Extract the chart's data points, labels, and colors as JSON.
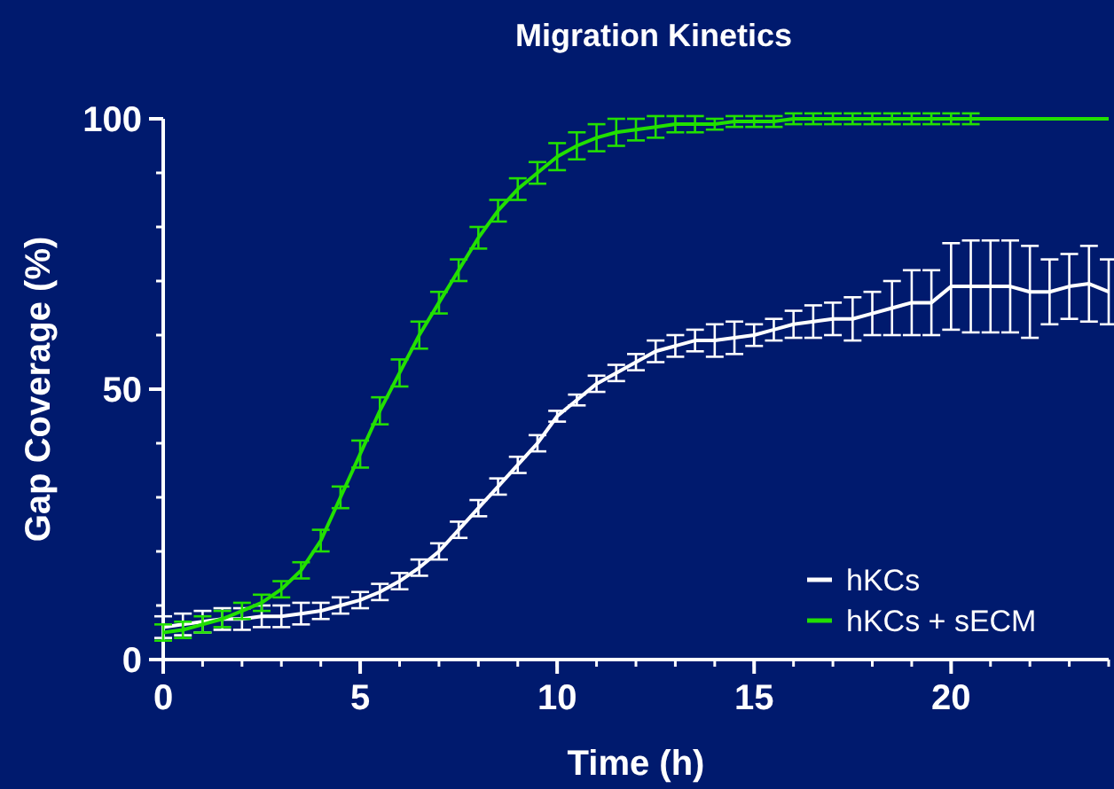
{
  "chart_data": {
    "type": "line",
    "title": "Migration Kinetics",
    "xlabel": "Time (h)",
    "ylabel": "Gap Coverage (%)",
    "x": [
      0,
      0.5,
      1,
      1.5,
      2,
      2.5,
      3,
      3.5,
      4,
      4.5,
      5,
      5.5,
      6,
      6.5,
      7,
      7.5,
      8,
      8.5,
      9,
      9.5,
      10,
      10.5,
      11,
      11.5,
      12,
      12.5,
      13,
      13.5,
      14,
      14.5,
      15,
      15.5,
      16,
      16.5,
      17,
      17.5,
      18,
      18.5,
      19,
      19.5,
      20,
      20.5,
      21,
      21.5,
      22,
      22.5,
      23,
      23.5,
      24
    ],
    "series": [
      {
        "name": "hKCs",
        "color": "#ffffff",
        "values": [
          6,
          6.5,
          7,
          7.5,
          7.5,
          8,
          8,
          8.5,
          9,
          10,
          11,
          12.5,
          14.5,
          17,
          20,
          24,
          28,
          32,
          36,
          40,
          45,
          48,
          51,
          53,
          55,
          57,
          58,
          59,
          59,
          59.5,
          60,
          61,
          62,
          62.5,
          63,
          63,
          64,
          65,
          66,
          66,
          69,
          69,
          69,
          69,
          68,
          68,
          69,
          69.5,
          68
        ],
        "errors": [
          2,
          2,
          2,
          2,
          2,
          2,
          2,
          2,
          1.5,
          1.5,
          1.5,
          1.5,
          1.5,
          1.5,
          1.5,
          1.5,
          1.5,
          1.5,
          1.5,
          1.5,
          1,
          1,
          1.5,
          1.5,
          1.5,
          2,
          2,
          2,
          3,
          3,
          2,
          2,
          2.5,
          3,
          3,
          4,
          4,
          5,
          6,
          6,
          8,
          8.5,
          8.5,
          8.5,
          8.5,
          6,
          6,
          7,
          6
        ]
      },
      {
        "name": "hKCs + sECM",
        "color": "#22e000",
        "values": [
          5,
          5.5,
          6.5,
          7.5,
          9,
          10.5,
          13,
          16.5,
          22,
          30,
          38,
          46,
          53,
          60,
          66,
          72,
          78,
          83,
          87,
          90,
          93,
          95,
          96.5,
          97.5,
          98,
          98.5,
          99,
          99,
          99,
          99.5,
          99.5,
          99.5,
          100,
          100,
          100,
          100,
          100,
          100,
          100,
          100,
          100,
          100,
          100,
          100,
          100,
          100,
          100,
          100,
          100
        ],
        "errors": [
          1.5,
          1.5,
          1.5,
          1.5,
          1.5,
          1.5,
          1.5,
          1.5,
          2,
          2,
          2.5,
          2.5,
          2.5,
          2.5,
          2,
          2,
          2,
          2,
          2,
          2,
          2.5,
          2.5,
          2.5,
          2.5,
          2,
          2,
          1.5,
          1.5,
          1,
          1,
          1,
          1,
          1,
          1,
          1,
          1,
          1,
          1,
          1,
          1,
          1,
          1,
          null,
          null,
          null,
          null,
          null,
          null,
          null
        ]
      }
    ],
    "xlim": [
      0,
      24
    ],
    "xticks": [
      0,
      5,
      10,
      15,
      20
    ],
    "ylim": [
      0,
      100
    ],
    "yticks": [
      0,
      50,
      100
    ],
    "grid": false,
    "legend": "bottom right",
    "marker": "none",
    "line_style": "solid"
  }
}
